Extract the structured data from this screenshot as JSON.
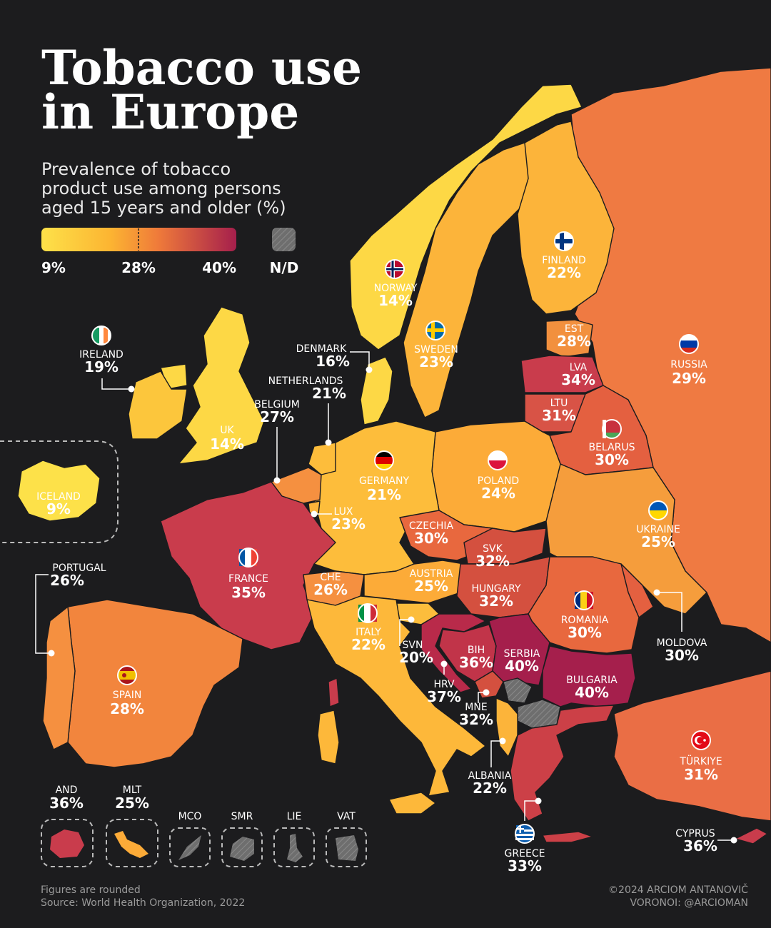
{
  "title_line1": "Tobacco use",
  "title_line2": "in Europe",
  "subtitle": [
    "Prevalence of tobacco",
    "product use among persons",
    "aged 15 years and older (%)"
  ],
  "legend": {
    "min": "9%",
    "mid": "28%",
    "max": "40%",
    "nd": "N/D",
    "colors": [
      "#fde149",
      "#fca632",
      "#ef6d3c",
      "#c23a4c",
      "#a51f4c"
    ]
  },
  "countries": [
    {
      "name": "ICELAND",
      "value": "9%"
    },
    {
      "name": "IRELAND",
      "value": "19%"
    },
    {
      "name": "UK",
      "value": "14%"
    },
    {
      "name": "NORWAY",
      "value": "14%"
    },
    {
      "name": "SWEDEN",
      "value": "23%"
    },
    {
      "name": "FINLAND",
      "value": "22%"
    },
    {
      "name": "DENMARK",
      "value": "16%"
    },
    {
      "name": "NETHERLANDS",
      "value": "21%"
    },
    {
      "name": "BELGIUM",
      "value": "27%"
    },
    {
      "name": "LUX",
      "value": "23%"
    },
    {
      "name": "GERMANY",
      "value": "21%"
    },
    {
      "name": "POLAND",
      "value": "24%"
    },
    {
      "name": "EST",
      "value": "28%"
    },
    {
      "name": "LVA",
      "value": "34%"
    },
    {
      "name": "LTU",
      "value": "31%"
    },
    {
      "name": "BELARUS",
      "value": "30%"
    },
    {
      "name": "RUSSIA",
      "value": "29%"
    },
    {
      "name": "UKRAINE",
      "value": "25%"
    },
    {
      "name": "CZECHIA",
      "value": "30%"
    },
    {
      "name": "SVK",
      "value": "32%"
    },
    {
      "name": "AUSTRIA",
      "value": "25%"
    },
    {
      "name": "HUNGARY",
      "value": "32%"
    },
    {
      "name": "FRANCE",
      "value": "35%"
    },
    {
      "name": "CHE",
      "value": "26%"
    },
    {
      "name": "PORTUGAL",
      "value": "26%"
    },
    {
      "name": "SPAIN",
      "value": "28%"
    },
    {
      "name": "ITALY",
      "value": "22%"
    },
    {
      "name": "SVN",
      "value": "20%"
    },
    {
      "name": "HRV",
      "value": "37%"
    },
    {
      "name": "BIH",
      "value": "36%"
    },
    {
      "name": "SERBIA",
      "value": "40%"
    },
    {
      "name": "MNE",
      "value": "32%"
    },
    {
      "name": "ROMANIA",
      "value": "30%"
    },
    {
      "name": "MOLDOVA",
      "value": "30%"
    },
    {
      "name": "BULGARIA",
      "value": "40%"
    },
    {
      "name": "ALBANIA",
      "value": "22%"
    },
    {
      "name": "GREECE",
      "value": "33%"
    },
    {
      "name": "TÜRKIYE",
      "value": "31%"
    },
    {
      "name": "CYPRUS",
      "value": "36%"
    },
    {
      "name": "AND",
      "value": "36%"
    },
    {
      "name": "MLT",
      "value": "25%"
    },
    {
      "name": "MCO",
      "value": ""
    },
    {
      "name": "SMR",
      "value": ""
    },
    {
      "name": "LIE",
      "value": ""
    },
    {
      "name": "VAT",
      "value": ""
    }
  ],
  "footer_left": [
    "Figures are rounded",
    "Source: World Health Organization, 2022"
  ],
  "footer_right": [
    "©2024 ARCIOM ANTANOVIČ",
    "VORONOI: @ARCIOMAN"
  ]
}
